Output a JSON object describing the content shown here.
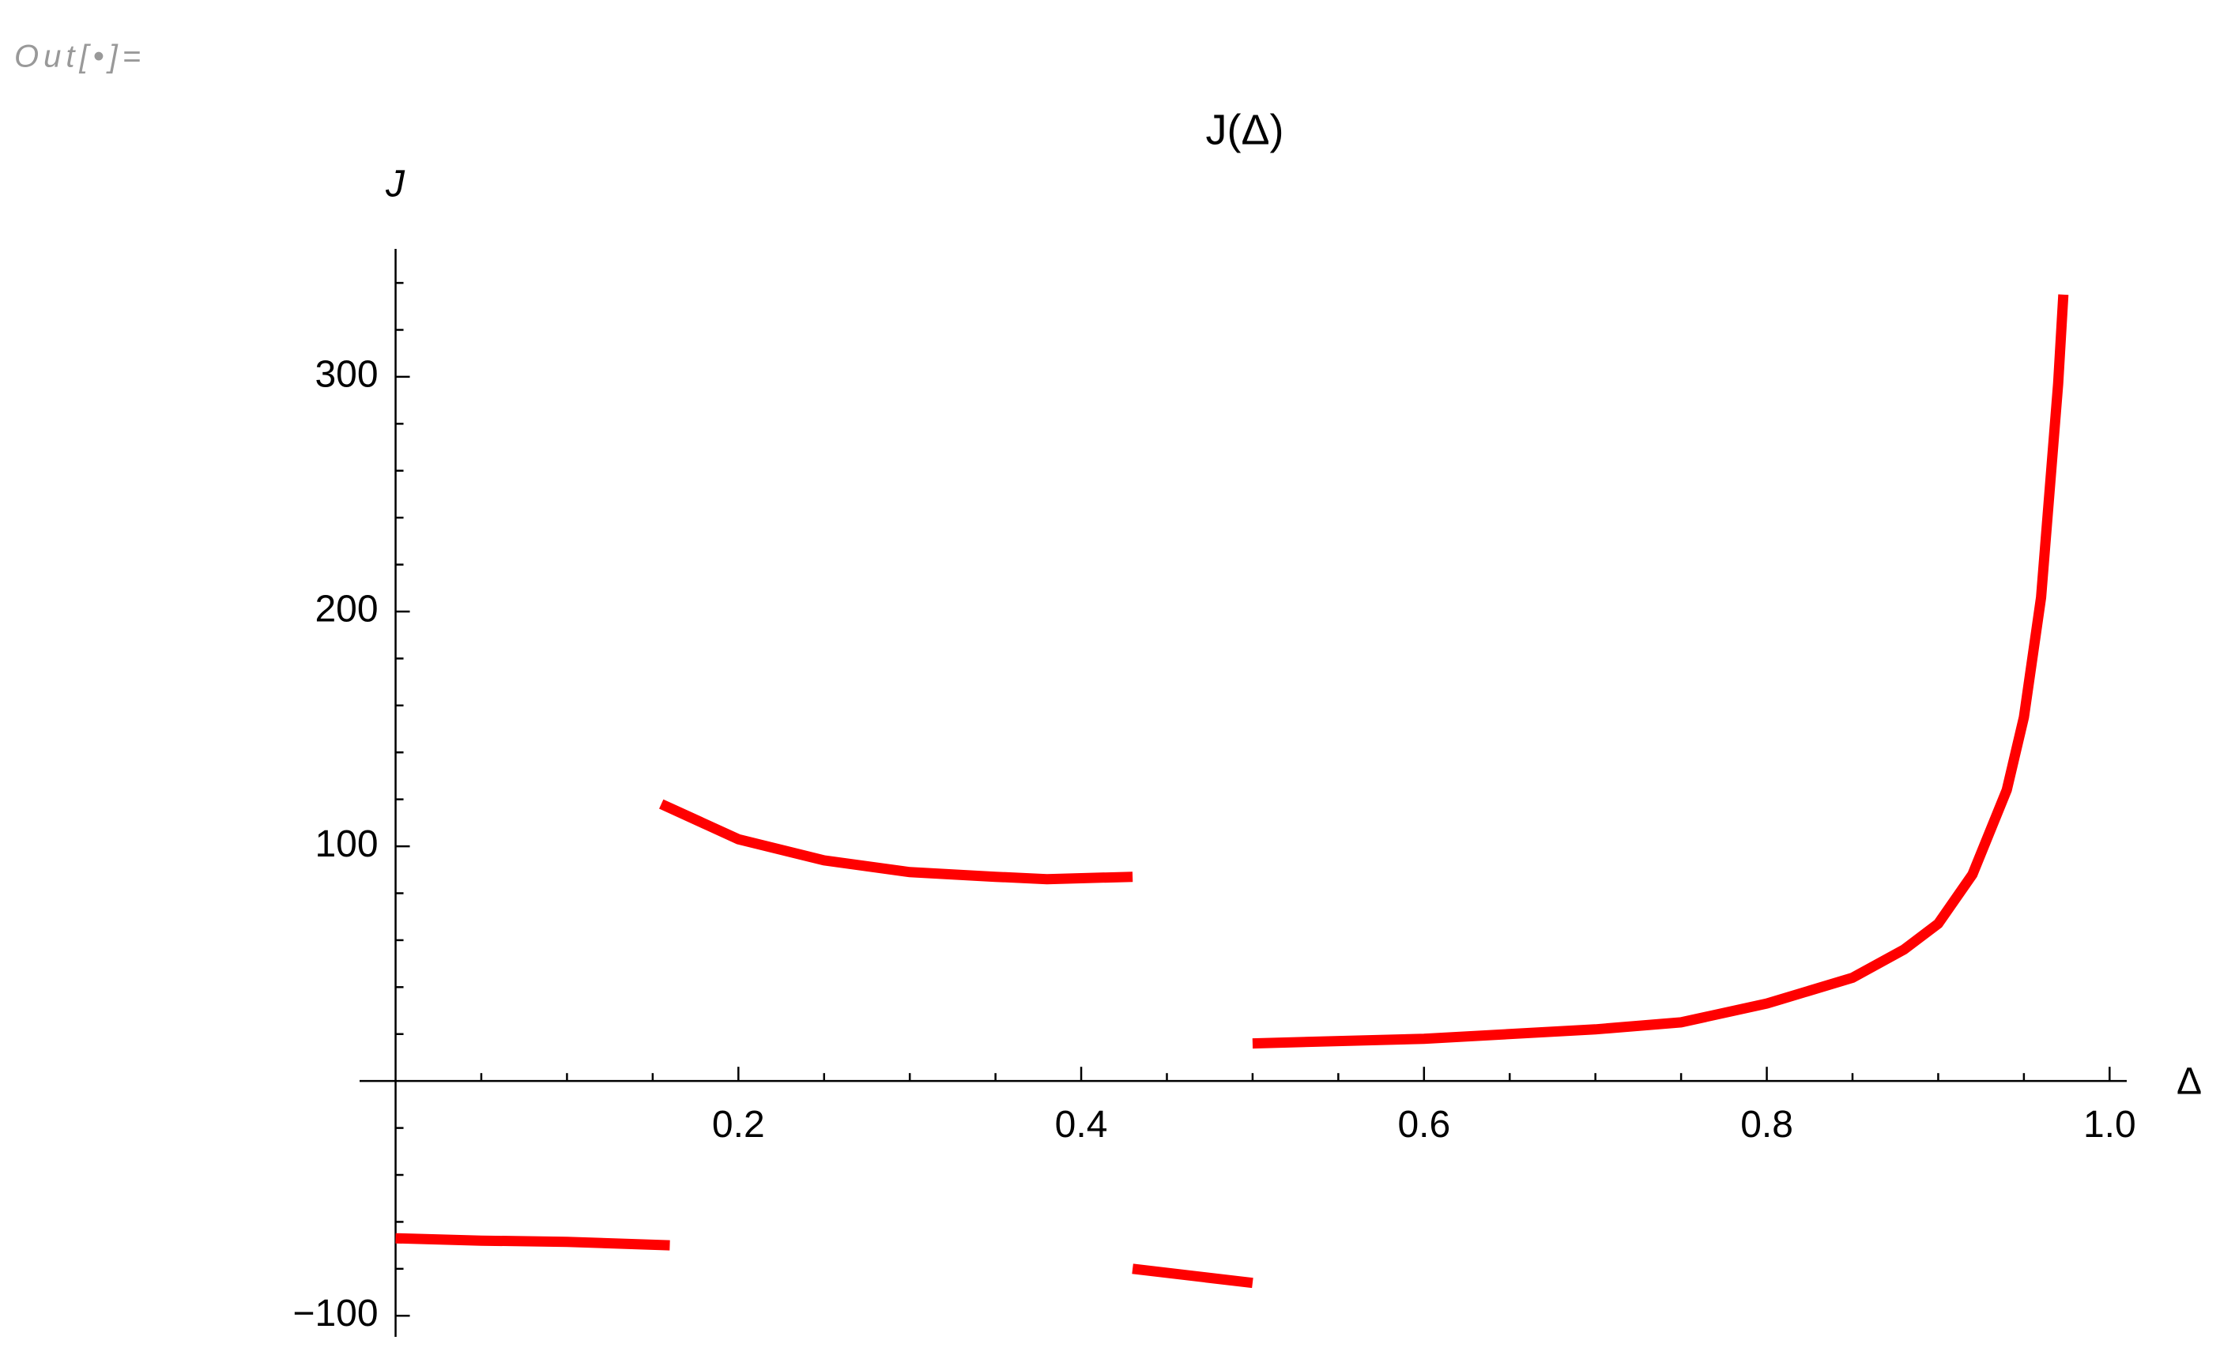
{
  "cell_label": "Out[•]=",
  "chart_data": {
    "type": "line",
    "title": "J(Δ)",
    "xlabel": "Δ",
    "ylabel": "J",
    "x": [
      0,
      0.05,
      0.1,
      0.16,
      0.16,
      0.155,
      0.2,
      0.25,
      0.3,
      0.35,
      0.38,
      0.43,
      0.43,
      0.43,
      0.5,
      0.5,
      0.5,
      0.6,
      0.7,
      0.75,
      0.8,
      0.85,
      0.88,
      0.9,
      0.92,
      0.94,
      0.95,
      0.96,
      0.97,
      0.973
    ],
    "series": [
      {
        "name": "J",
        "color": "#ff0000",
        "values": [
          -67,
          -68,
          -68.5,
          -70,
          null,
          118,
          103,
          94,
          89,
          87,
          86,
          87,
          null,
          -80,
          -86,
          null,
          16,
          18,
          22,
          25,
          33,
          44,
          56,
          67,
          88,
          124,
          155,
          206,
          297,
          335
        ]
      }
    ],
    "xlim": [
      -0.021,
      1.01
    ],
    "ylim": [
      -109,
      354.5
    ],
    "xticks": [
      0.2,
      0.4,
      0.6,
      0.8,
      {
        "value": 1.0,
        "label": "1.0"
      }
    ],
    "yticks": [
      {
        "value": -100,
        "label": "−100"
      },
      100,
      200,
      300
    ],
    "xminorticks": [
      0.05,
      0.1,
      0.15,
      0.25,
      0.3,
      0.35,
      0.45,
      0.5,
      0.55,
      0.65,
      0.7,
      0.75,
      0.85,
      0.9,
      0.95
    ],
    "yminorticks": [
      -80,
      -60,
      -40,
      -20,
      20,
      40,
      60,
      80,
      120,
      140,
      160,
      180,
      220,
      240,
      260,
      280,
      320,
      340
    ]
  }
}
